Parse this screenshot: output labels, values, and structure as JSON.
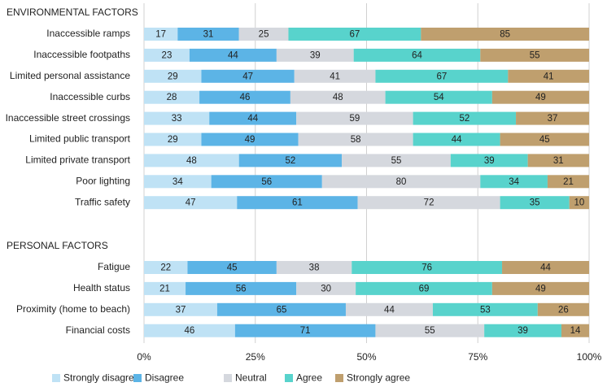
{
  "chart_data": {
    "type": "bar",
    "orientation": "horizontal-stacked-100",
    "title": "",
    "xlabel": "",
    "ylabel": "",
    "xlim": [
      0,
      100
    ],
    "x_ticks": [
      "0%",
      "25%",
      "50%",
      "75%",
      "100%"
    ],
    "legend_position": "bottom",
    "colors": [
      "#bfe2f5",
      "#5cb4e6",
      "#d5d8de",
      "#58d3cc",
      "#bf9f6e"
    ],
    "series_names": [
      "Strongly disagree",
      "Disagree",
      "Neutral",
      "Agree",
      "Strongly agree"
    ],
    "groups": [
      {
        "name": "ENVIRONMENTAL FACTORS",
        "rows": [
          {
            "label": "Inaccessible ramps",
            "values": [
              17,
              31,
              25,
              67,
              85
            ]
          },
          {
            "label": "Inaccessible footpaths",
            "values": [
              23,
              44,
              39,
              64,
              55
            ]
          },
          {
            "label": "Limited personal assistance",
            "values": [
              29,
              47,
              41,
              67,
              41
            ]
          },
          {
            "label": "Inaccessible curbs",
            "values": [
              28,
              46,
              48,
              54,
              49
            ]
          },
          {
            "label": "Inaccessible street crossings",
            "values": [
              33,
              44,
              59,
              52,
              37
            ]
          },
          {
            "label": "Limited public transport",
            "values": [
              29,
              49,
              58,
              44,
              45
            ]
          },
          {
            "label": "Limited private transport",
            "values": [
              48,
              52,
              55,
              39,
              31
            ]
          },
          {
            "label": "Poor lighting",
            "values": [
              34,
              56,
              80,
              34,
              21
            ]
          },
          {
            "label": "Traffic safety",
            "values": [
              47,
              61,
              72,
              35,
              10
            ]
          }
        ]
      },
      {
        "name": "PERSONAL FACTORS",
        "rows": [
          {
            "label": "Fatigue",
            "values": [
              22,
              45,
              38,
              76,
              44
            ]
          },
          {
            "label": "Health status",
            "values": [
              21,
              56,
              30,
              69,
              49
            ]
          },
          {
            "label": "Proximity (home to beach)",
            "values": [
              37,
              65,
              44,
              53,
              26
            ]
          },
          {
            "label": "Financial costs",
            "values": [
              46,
              71,
              55,
              39,
              14
            ]
          }
        ]
      }
    ]
  }
}
